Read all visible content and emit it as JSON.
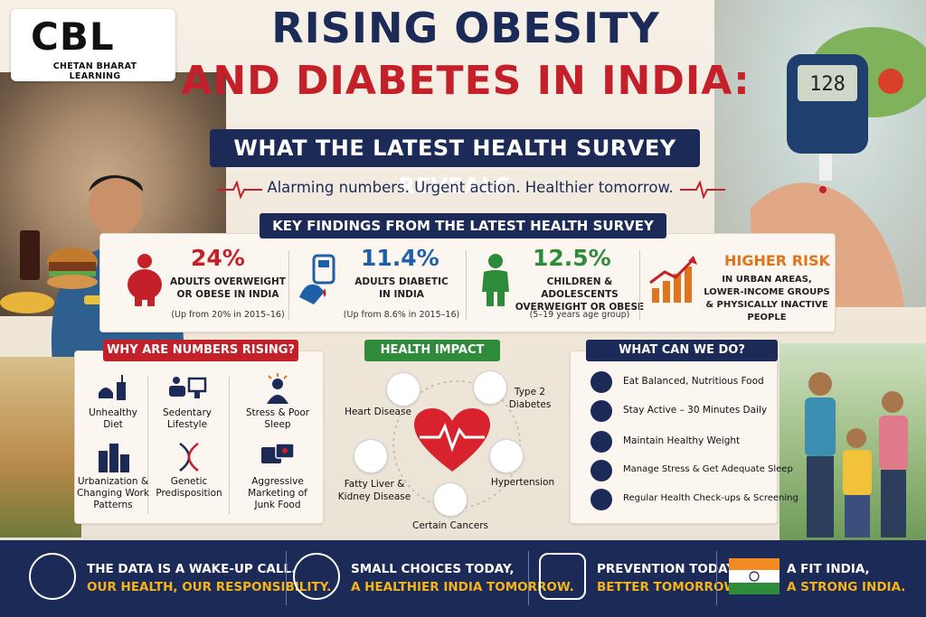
{
  "logo": {
    "mark": "CBL",
    "subtitle": "CHETAN BHARAT LEARNING"
  },
  "title": {
    "line1": "RISING OBESITY",
    "line2": "AND DIABETES IN INDIA:",
    "subtitle": "WHAT THE LATEST HEALTH SURVEY REVEALS",
    "tagline": "Alarming numbers. Urgent action. Healthier tomorrow."
  },
  "glucose_meter": {
    "reading": "128"
  },
  "key_findings": {
    "header": "KEY FINDINGS FROM THE LATEST HEALTH SURVEY",
    "items": [
      {
        "value": "24%",
        "desc1": "ADULTS OVERWEIGHT",
        "desc2": "OR OBESE IN INDIA",
        "note": "(Up from 20% in 2015–16)",
        "color": "#c4202a",
        "icon": "obese-person-icon"
      },
      {
        "value": "11.4%",
        "desc1": "ADULTS DIABETIC",
        "desc2": "IN INDIA",
        "note": "(Up from 8.6% in 2015–16)",
        "color": "#1f5fa8",
        "icon": "glucose-test-icon"
      },
      {
        "value": "12.5%",
        "desc1": "CHILDREN & ADOLESCENTS",
        "desc2": "OVERWEIGHT OR OBESE",
        "note": "(5–19 years age group)",
        "color": "#2e8b3a",
        "icon": "child-icon"
      },
      {
        "value": "HIGHER RISK",
        "desc1": "IN URBAN AREAS,",
        "desc2": "LOWER-INCOME GROUPS",
        "desc3": "& PHYSICALLY INACTIVE PEOPLE",
        "color": "#e0731c",
        "icon": "rising-chart-icon"
      }
    ]
  },
  "why_rising": {
    "header": "WHY ARE NUMBERS RISING?",
    "color": "#c4202a",
    "causes": [
      {
        "l1": "Unhealthy",
        "l2": "Diet",
        "icon": "junk-food-icon"
      },
      {
        "l1": "Sedentary",
        "l2": "Lifestyle",
        "icon": "tv-couch-icon"
      },
      {
        "l1": "Stress & Poor",
        "l2": "Sleep",
        "icon": "stressed-person-icon"
      },
      {
        "l1": "Urbanization &",
        "l2": "Changing Work",
        "l3": "Patterns",
        "icon": "city-buildings-icon"
      },
      {
        "l1": "Genetic",
        "l2": "Predisposition",
        "icon": "dna-icon"
      },
      {
        "l1": "Aggressive",
        "l2": "Marketing of",
        "l3": "Junk Food",
        "icon": "advertising-icon"
      }
    ]
  },
  "health_impact": {
    "header": "HEALTH IMPACT",
    "color": "#2e8b3a",
    "items": [
      "Heart Disease",
      "Type 2",
      "Diabetes",
      "Fatty Liver &",
      "Kidney Disease",
      "Hypertension",
      "Certain Cancers"
    ]
  },
  "what_can_we_do": {
    "header": "WHAT CAN WE DO?",
    "color": "#1c2a57",
    "items": [
      {
        "label": "Eat Balanced, Nutritious Food",
        "icon": "apple-icon"
      },
      {
        "label": "Stay Active – 30 Minutes Daily",
        "icon": "runner-icon"
      },
      {
        "label": "Maintain Healthy Weight",
        "icon": "scale-icon"
      },
      {
        "label": "Manage Stress & Get Adequate Sleep",
        "icon": "bed-icon"
      },
      {
        "label": "Regular Health Check-ups & Screening",
        "icon": "heart-monitor-icon"
      }
    ]
  },
  "footer": {
    "items": [
      {
        "l1": "THE DATA IS A WAKE-UP CALL.",
        "l2": "OUR HEALTH, OUR RESPONSIBILITY.",
        "icon": "community-icon"
      },
      {
        "l1": "SMALL CHOICES TODAY,",
        "l2": "A HEALTHIER INDIA TOMORROW.",
        "icon": "heart-hands-icon"
      },
      {
        "l1": "PREVENTION TODAY,",
        "l2": "BETTER TOMORROW.",
        "icon": "shield-cross-icon"
      },
      {
        "l1": "A FIT INDIA,",
        "l2": "A STRONG INDIA.",
        "icon": "india-flag-icon"
      }
    ],
    "accent": "#f4b41a"
  }
}
